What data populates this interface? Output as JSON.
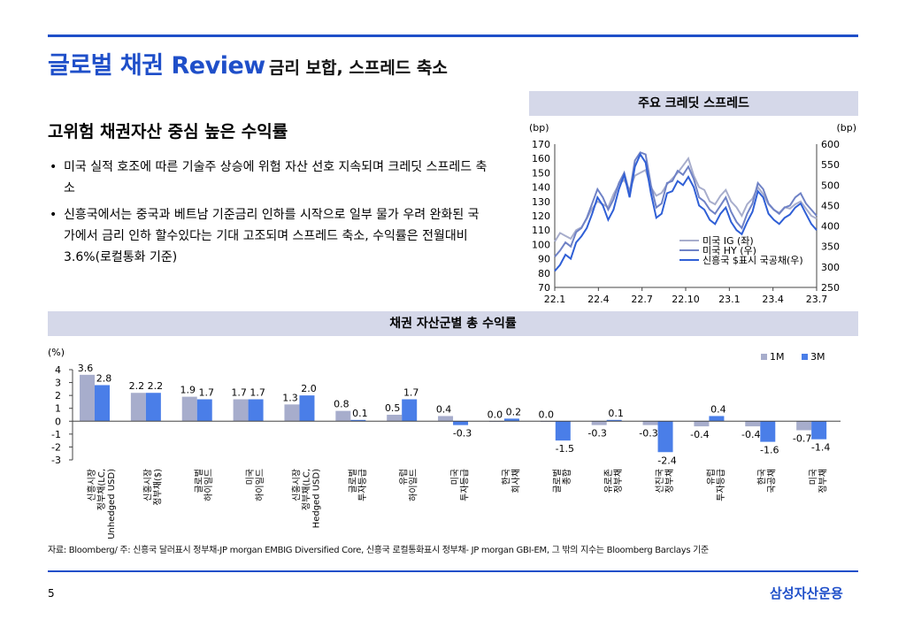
{
  "header": {
    "title": "글로벌 채권 Review",
    "subtitle": "금리 보합, 스프레드 축소"
  },
  "section": {
    "heading": "고위험 채권자산 중심 높은 수익률",
    "bullets": [
      "미국 실적 호조에 따른 기술주 상승에 위험 자산 선호 지속되며 크레딧 스프레드 축소",
      "신흥국에서는 중국과 베트남 기준금리 인하를 시작으로 일부 물가 우려 완화된 국가에서 금리 인하 할수있다는 기대 고조되며 스프레드 축소, 수익률은 전월대비 3.6%(로컬통화 기준)"
    ]
  },
  "colors": {
    "accent": "#1f4fc9",
    "series_1m": "#a7adcc",
    "series_3m": "#4a7ee8",
    "band": "#d5d8e9"
  },
  "chart_data": [
    {
      "type": "line",
      "title": "주요 크레딧 스프레드",
      "y_left_unit": "(bp)",
      "y_right_unit": "(bp)",
      "ylim_left": [
        70,
        170
      ],
      "ylim_right": [
        250,
        600
      ],
      "y_left_ticks": [
        70,
        80,
        90,
        100,
        110,
        120,
        130,
        140,
        150,
        160,
        170
      ],
      "y_right_ticks": [
        250,
        300,
        350,
        400,
        450,
        500,
        550,
        600
      ],
      "x_ticks": [
        "22.1",
        "22.4",
        "22.7",
        "22.10",
        "23.1",
        "23.4",
        "23.7"
      ],
      "legend_position": "bottom-right",
      "series": [
        {
          "name": "미국 IG (좌)",
          "axis": "left",
          "color": "#a7adcc",
          "values": [
            102,
            108,
            106,
            104,
            110,
            112,
            118,
            125,
            130,
            128,
            126,
            135,
            142,
            145,
            138,
            148,
            150,
            152,
            140,
            134,
            136,
            142,
            146,
            150,
            155,
            160,
            148,
            140,
            138,
            130,
            128,
            134,
            138,
            130,
            126,
            120,
            128,
            132,
            140,
            135,
            128,
            124,
            122,
            126,
            125,
            128,
            130,
            125,
            120,
            118
          ]
        },
        {
          "name": "미국 HY (우)",
          "axis": "right",
          "color": "#6f82c6",
          "values": [
            325,
            340,
            360,
            350,
            385,
            395,
            420,
            455,
            490,
            470,
            440,
            465,
            505,
            530,
            480,
            560,
            580,
            575,
            500,
            445,
            455,
            505,
            510,
            535,
            525,
            545,
            515,
            470,
            460,
            440,
            430,
            450,
            470,
            435,
            410,
            395,
            430,
            455,
            505,
            490,
            455,
            440,
            430,
            445,
            450,
            470,
            480,
            455,
            440,
            425
          ]
        },
        {
          "name": "신흥국 $표시 국공채(우)",
          "axis": "right",
          "color": "#2f5fd6",
          "values": [
            290,
            305,
            330,
            320,
            360,
            375,
            395,
            430,
            470,
            450,
            415,
            440,
            490,
            525,
            470,
            545,
            575,
            555,
            480,
            420,
            430,
            480,
            485,
            510,
            500,
            520,
            495,
            450,
            440,
            415,
            405,
            430,
            445,
            410,
            390,
            380,
            410,
            435,
            485,
            470,
            430,
            415,
            405,
            420,
            428,
            445,
            455,
            430,
            405,
            390
          ]
        }
      ]
    },
    {
      "type": "bar",
      "title": "채권 자산군별 총 수익률",
      "y_unit": "(%)",
      "ylim": [
        -3,
        4
      ],
      "y_ticks": [
        4,
        3,
        2,
        1,
        0,
        -1,
        -2,
        -3
      ],
      "legend_position": "top-right",
      "categories": [
        [
          "신흥시장",
          "정부채(LC,",
          "Unhedged USD)"
        ],
        [
          "신흥시장",
          "정부채($)"
        ],
        [
          "글로벌",
          "하이일드"
        ],
        [
          "미국",
          "하이일드"
        ],
        [
          "신흥시장",
          "정부채(LC,",
          "Hedged USD)"
        ],
        [
          "글로벌",
          "투자등급"
        ],
        [
          "유럽",
          "하이일드"
        ],
        [
          "미국",
          "투자등급"
        ],
        [
          "한국",
          "회사채"
        ],
        [
          "글로벌",
          "종합"
        ],
        [
          "유로존",
          "정부채"
        ],
        [
          "선진국",
          "정부채"
        ],
        [
          "유럽",
          "투자등급"
        ],
        [
          "한국",
          "국공채"
        ],
        [
          "미국",
          "정부채"
        ]
      ],
      "series": [
        {
          "name": "1M",
          "color": "#a7adcc",
          "values": [
            3.6,
            2.2,
            1.9,
            1.7,
            1.3,
            0.8,
            0.5,
            0.4,
            0.0,
            0.0,
            -0.3,
            -0.3,
            -0.4,
            -0.4,
            -0.7
          ],
          "labels": [
            "3.6",
            "2.2",
            "1.9",
            "1.7",
            "1.3",
            "0.8",
            "0.5",
            "0.4",
            "0.0",
            "0.0",
            "-0.3",
            "-0.3",
            "-0.4",
            "-0.4",
            "-0.7"
          ]
        },
        {
          "name": "3M",
          "color": "#4a7ee8",
          "values": [
            2.8,
            2.2,
            1.7,
            1.7,
            2.0,
            0.1,
            1.7,
            -0.3,
            0.2,
            -1.5,
            0.1,
            -2.4,
            0.4,
            -1.6,
            -1.4
          ],
          "labels": [
            "2.8",
            "2.2",
            "1.7",
            "1.7",
            "2.0",
            "0.1",
            "1.7",
            "-0.3",
            "0.2",
            "-1.5",
            "0.1",
            "-2.4",
            "0.4",
            "-1.6",
            "-1.4"
          ]
        }
      ]
    }
  ],
  "footer": {
    "source": "자료: Bloomberg/ 주: 신흥국 달러표시 정부채-JP morgan EMBIG Diversified Core, 신흥국 로컬통화표시 정부채- JP morgan GBI-EM, 그 밖의 지수는 Bloomberg Barclays 기준",
    "page": "5",
    "brand": "삼성자산운용"
  }
}
